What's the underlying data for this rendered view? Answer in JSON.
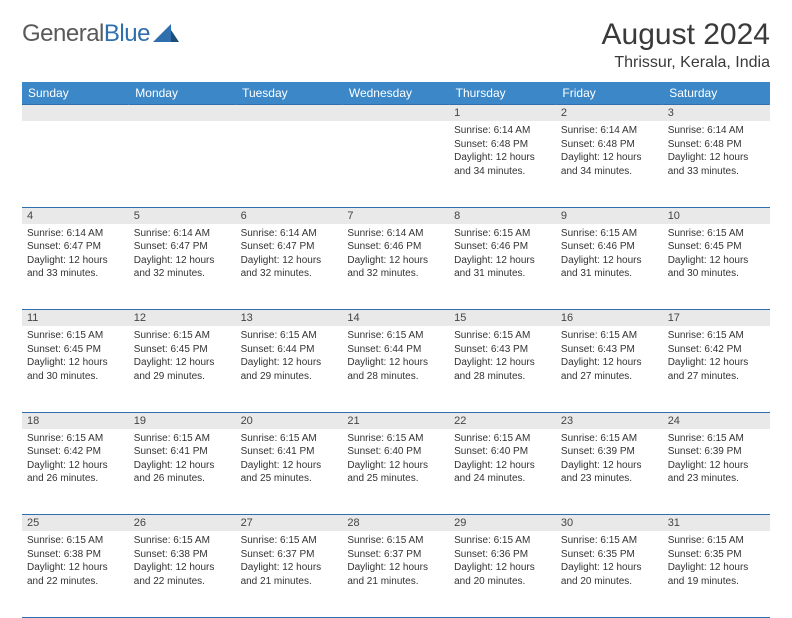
{
  "brand": {
    "part1": "General",
    "part2": "Blue"
  },
  "title": "August 2024",
  "location": "Thrissur, Kerala, India",
  "colors": {
    "header_bg": "#3b87c8",
    "border": "#2f6fad",
    "daynum_bg": "#e9e9e9",
    "text": "#333333",
    "title_text": "#3a3a3a"
  },
  "day_headers": [
    "Sunday",
    "Monday",
    "Tuesday",
    "Wednesday",
    "Thursday",
    "Friday",
    "Saturday"
  ],
  "weeks": [
    [
      null,
      null,
      null,
      null,
      {
        "n": "1",
        "sr": "6:14 AM",
        "ss": "6:48 PM",
        "dl": "12 hours and 34 minutes."
      },
      {
        "n": "2",
        "sr": "6:14 AM",
        "ss": "6:48 PM",
        "dl": "12 hours and 34 minutes."
      },
      {
        "n": "3",
        "sr": "6:14 AM",
        "ss": "6:48 PM",
        "dl": "12 hours and 33 minutes."
      }
    ],
    [
      {
        "n": "4",
        "sr": "6:14 AM",
        "ss": "6:47 PM",
        "dl": "12 hours and 33 minutes."
      },
      {
        "n": "5",
        "sr": "6:14 AM",
        "ss": "6:47 PM",
        "dl": "12 hours and 32 minutes."
      },
      {
        "n": "6",
        "sr": "6:14 AM",
        "ss": "6:47 PM",
        "dl": "12 hours and 32 minutes."
      },
      {
        "n": "7",
        "sr": "6:14 AM",
        "ss": "6:46 PM",
        "dl": "12 hours and 32 minutes."
      },
      {
        "n": "8",
        "sr": "6:15 AM",
        "ss": "6:46 PM",
        "dl": "12 hours and 31 minutes."
      },
      {
        "n": "9",
        "sr": "6:15 AM",
        "ss": "6:46 PM",
        "dl": "12 hours and 31 minutes."
      },
      {
        "n": "10",
        "sr": "6:15 AM",
        "ss": "6:45 PM",
        "dl": "12 hours and 30 minutes."
      }
    ],
    [
      {
        "n": "11",
        "sr": "6:15 AM",
        "ss": "6:45 PM",
        "dl": "12 hours and 30 minutes."
      },
      {
        "n": "12",
        "sr": "6:15 AM",
        "ss": "6:45 PM",
        "dl": "12 hours and 29 minutes."
      },
      {
        "n": "13",
        "sr": "6:15 AM",
        "ss": "6:44 PM",
        "dl": "12 hours and 29 minutes."
      },
      {
        "n": "14",
        "sr": "6:15 AM",
        "ss": "6:44 PM",
        "dl": "12 hours and 28 minutes."
      },
      {
        "n": "15",
        "sr": "6:15 AM",
        "ss": "6:43 PM",
        "dl": "12 hours and 28 minutes."
      },
      {
        "n": "16",
        "sr": "6:15 AM",
        "ss": "6:43 PM",
        "dl": "12 hours and 27 minutes."
      },
      {
        "n": "17",
        "sr": "6:15 AM",
        "ss": "6:42 PM",
        "dl": "12 hours and 27 minutes."
      }
    ],
    [
      {
        "n": "18",
        "sr": "6:15 AM",
        "ss": "6:42 PM",
        "dl": "12 hours and 26 minutes."
      },
      {
        "n": "19",
        "sr": "6:15 AM",
        "ss": "6:41 PM",
        "dl": "12 hours and 26 minutes."
      },
      {
        "n": "20",
        "sr": "6:15 AM",
        "ss": "6:41 PM",
        "dl": "12 hours and 25 minutes."
      },
      {
        "n": "21",
        "sr": "6:15 AM",
        "ss": "6:40 PM",
        "dl": "12 hours and 25 minutes."
      },
      {
        "n": "22",
        "sr": "6:15 AM",
        "ss": "6:40 PM",
        "dl": "12 hours and 24 minutes."
      },
      {
        "n": "23",
        "sr": "6:15 AM",
        "ss": "6:39 PM",
        "dl": "12 hours and 23 minutes."
      },
      {
        "n": "24",
        "sr": "6:15 AM",
        "ss": "6:39 PM",
        "dl": "12 hours and 23 minutes."
      }
    ],
    [
      {
        "n": "25",
        "sr": "6:15 AM",
        "ss": "6:38 PM",
        "dl": "12 hours and 22 minutes."
      },
      {
        "n": "26",
        "sr": "6:15 AM",
        "ss": "6:38 PM",
        "dl": "12 hours and 22 minutes."
      },
      {
        "n": "27",
        "sr": "6:15 AM",
        "ss": "6:37 PM",
        "dl": "12 hours and 21 minutes."
      },
      {
        "n": "28",
        "sr": "6:15 AM",
        "ss": "6:37 PM",
        "dl": "12 hours and 21 minutes."
      },
      {
        "n": "29",
        "sr": "6:15 AM",
        "ss": "6:36 PM",
        "dl": "12 hours and 20 minutes."
      },
      {
        "n": "30",
        "sr": "6:15 AM",
        "ss": "6:35 PM",
        "dl": "12 hours and 20 minutes."
      },
      {
        "n": "31",
        "sr": "6:15 AM",
        "ss": "6:35 PM",
        "dl": "12 hours and 19 minutes."
      }
    ]
  ],
  "labels": {
    "sunrise": "Sunrise:",
    "sunset": "Sunset:",
    "daylight": "Daylight:"
  }
}
